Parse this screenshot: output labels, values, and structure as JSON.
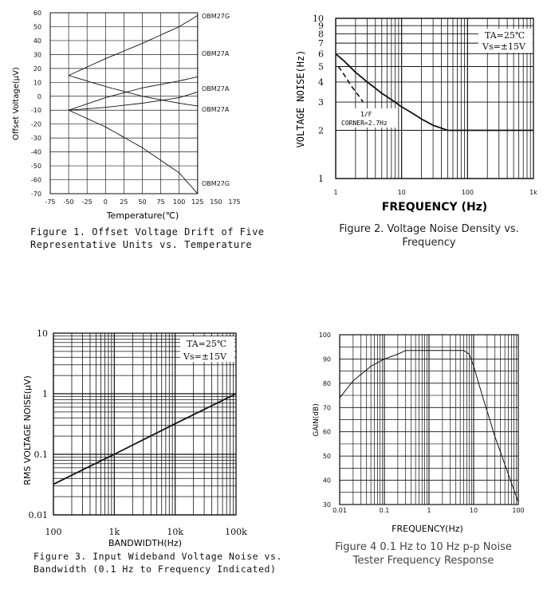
{
  "chart_data": [
    {
      "id": "fig1",
      "type": "line",
      "caption_line1": "Figure 1.  Offset Voltage Drift of Five",
      "caption_line2": "Representative Units vs.  Temperature",
      "xlabel": "Temperature(℃)",
      "ylabel": "Offset Voltage(μV)",
      "xlim": [
        -75,
        175
      ],
      "ylim": [
        -70,
        60
      ],
      "xticks": [
        "-75",
        "-50",
        "-25",
        "0",
        "25",
        "50",
        "75",
        "100",
        "125",
        "150",
        "175"
      ],
      "yticks": [
        "60",
        "50",
        "40",
        "30",
        "20",
        "10",
        "0",
        "-10",
        "-20",
        "-30",
        "-40",
        "-50",
        "-60",
        "-70"
      ],
      "grid": true,
      "series": [
        {
          "name": "OBM27G",
          "x": [
            -50,
            0,
            50,
            100,
            125
          ],
          "y": [
            15,
            27,
            38,
            50,
            58
          ]
        },
        {
          "name": "OBM27A",
          "x": [
            -50,
            0,
            50,
            100,
            125
          ],
          "y": [
            15,
            7,
            0,
            -5,
            -7
          ]
        },
        {
          "name": "OBM27A",
          "x": [
            -50,
            0,
            50,
            100,
            125
          ],
          "y": [
            -10,
            -8,
            -5,
            -1,
            3
          ]
        },
        {
          "name": "OBM27A",
          "x": [
            -50,
            0,
            50,
            100,
            125
          ],
          "y": [
            -10,
            -1,
            6,
            11,
            14
          ]
        },
        {
          "name": "OBM27G",
          "x": [
            -50,
            0,
            50,
            100,
            125
          ],
          "y": [
            -10,
            -22,
            -37,
            -55,
            -70
          ]
        }
      ],
      "annotations": [
        "OBM27G",
        "OBM27A",
        "OBM27A",
        "OBM27A",
        "OBM27G"
      ]
    },
    {
      "id": "fig2",
      "type": "line",
      "caption_line1": "Figure 2. Voltage Noise Density vs.",
      "caption_line2": "Frequency",
      "xlabel": "FREQUENCY (Hz)",
      "ylabel": "VOLTAGE NOISE(Hz)",
      "xscale": "log",
      "yscale": "log",
      "xlim": [
        1,
        1000
      ],
      "ylim": [
        1,
        10
      ],
      "xticks": [
        "1",
        "10",
        "100",
        "1k"
      ],
      "yticks": [
        "10",
        "9",
        "8",
        "7",
        "6",
        "5",
        "4",
        "3",
        "2",
        "1"
      ],
      "grid": true,
      "conditions_line1": "TA=25℃",
      "conditions_line2": "Vs=±15V",
      "annotation_line1": "1/F",
      "annotation_line2": "CORNER=2.7Hz",
      "series": [
        {
          "x": [
            1,
            2,
            3,
            5,
            10,
            20,
            30,
            50,
            100,
            1000
          ],
          "y": [
            6,
            4.6,
            4,
            3.4,
            2.8,
            2.35,
            2.15,
            2,
            2,
            2
          ]
        },
        {
          "x": [
            1.1,
            1.7,
            2.6
          ],
          "y": [
            5,
            3.8,
            3
          ],
          "style": "dashed"
        }
      ]
    },
    {
      "id": "fig3",
      "type": "line",
      "caption_line1": "Figure 3. Input Wideband Voltage Noise vs.",
      "caption_line2": "Bandwidth (0.1 Hz to Frequency Indicated)",
      "xlabel": "BANDWIDTH(Hz)",
      "ylabel": "RMS VOLTAGE NOISE(μV)",
      "xscale": "log",
      "yscale": "log",
      "xlim": [
        100,
        100000
      ],
      "ylim": [
        0.01,
        10
      ],
      "xticks": [
        "100",
        "1k",
        "10k",
        "100k"
      ],
      "yticks": [
        "10",
        "1",
        "0.1",
        "0.01"
      ],
      "grid": true,
      "conditions_line1": "TA=25℃",
      "conditions_line2": "Vs=±15V",
      "series": [
        {
          "x": [
            100,
            1000,
            10000,
            100000
          ],
          "y": [
            0.032,
            0.1,
            0.32,
            1
          ]
        }
      ]
    },
    {
      "id": "fig4",
      "type": "line",
      "caption_line1": "Figure 4 0.1 Hz to 10 Hz p-p Noise",
      "caption_line2": "Tester Frequency Response",
      "xlabel": "FREQUENCY(Hz)",
      "ylabel": "GAIN(dB)",
      "xscale": "log",
      "xlim": [
        0.01,
        100
      ],
      "ylim": [
        30,
        100
      ],
      "xticks": [
        "0.01",
        "0.1",
        "1",
        "10",
        "100"
      ],
      "yticks": [
        "100",
        "90",
        "80",
        "70",
        "60",
        "50",
        "40",
        "30"
      ],
      "grid": true,
      "series": [
        {
          "x": [
            0.01,
            0.02,
            0.05,
            0.1,
            0.2,
            0.3,
            1,
            3,
            6,
            8,
            10,
            15,
            30,
            100
          ],
          "y": [
            74,
            81,
            87,
            90,
            92,
            93.5,
            93.5,
            93.5,
            93.5,
            92,
            87,
            76,
            58,
            31
          ]
        }
      ]
    }
  ]
}
